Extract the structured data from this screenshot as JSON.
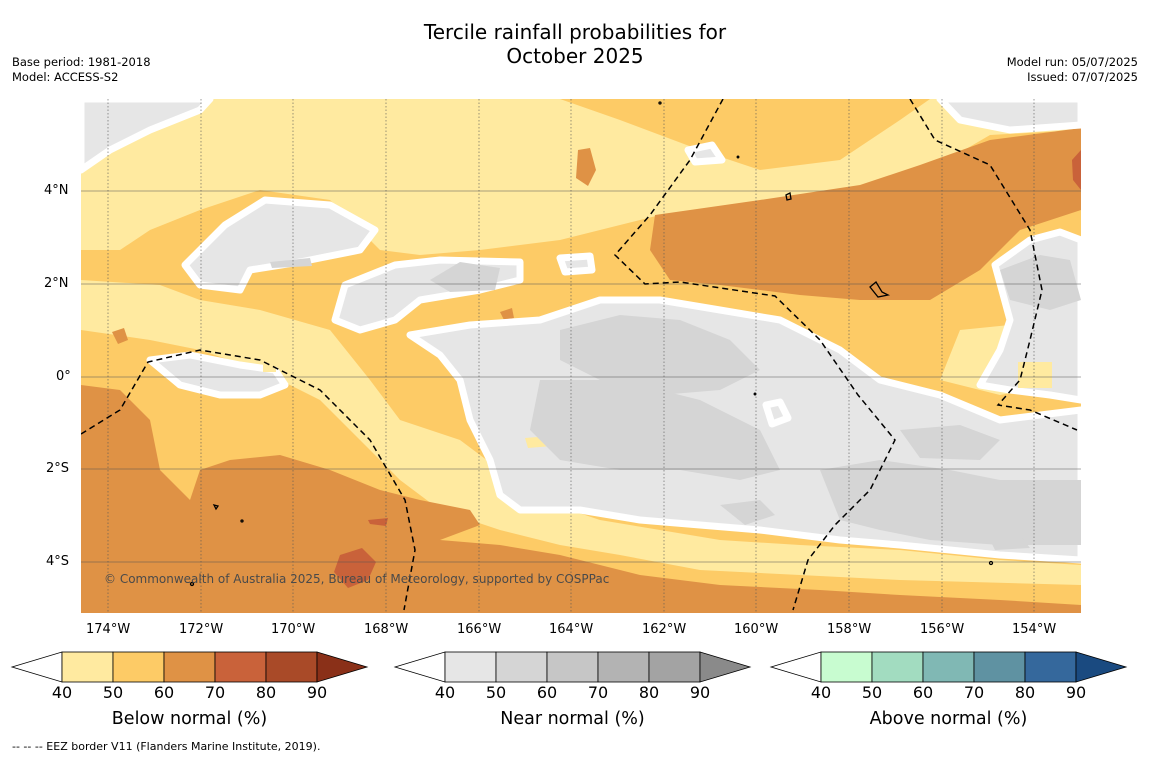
{
  "title_line1": "Tercile rainfall probabilities for",
  "title_line2": "October 2025",
  "meta_left": {
    "line1": "Base period: 1981-2018",
    "line2": "Model: ACCESS-S2"
  },
  "meta_right": {
    "line1": "Model run: 05/07/2025",
    "line2": "Issued: 07/07/2025"
  },
  "copyright": "© Commonwealth of Australia 2025, Bureau of Meteorology, supported by COSPPac",
  "lat_ticks": [
    "4°N",
    "2°N",
    "0°",
    "2°S",
    "4°S"
  ],
  "lon_ticks": [
    "174°W",
    "172°W",
    "170°W",
    "168°W",
    "166°W",
    "164°W",
    "162°W",
    "160°W",
    "158°W",
    "156°W",
    "154°W"
  ],
  "colorbars": [
    {
      "label": "Below normal (%)",
      "ticks": [
        "40",
        "50",
        "60",
        "70",
        "80",
        "90"
      ],
      "colors": [
        "#ffeaa0",
        "#fdcb66",
        "#df9245",
        "#c9623a",
        "#a94a28",
        "#8a3018"
      ]
    },
    {
      "label": "Near normal (%)",
      "ticks": [
        "40",
        "50",
        "60",
        "70",
        "80",
        "90"
      ],
      "colors": [
        "#e6e6e6",
        "#d5d5d5",
        "#c6c6c6",
        "#b3b3b3",
        "#a3a3a3",
        "#8a8a8a"
      ]
    },
    {
      "label": "Above normal (%)",
      "ticks": [
        "40",
        "50",
        "60",
        "70",
        "80",
        "90"
      ],
      "colors": [
        "#c8fcd0",
        "#a2dcc0",
        "#80b8b4",
        "#5f92a2",
        "#35689c",
        "#1a4a80"
      ]
    }
  ],
  "footnote": "-- -- -- EEZ border V11 (Flanders Marine Institute, 2019)."
}
